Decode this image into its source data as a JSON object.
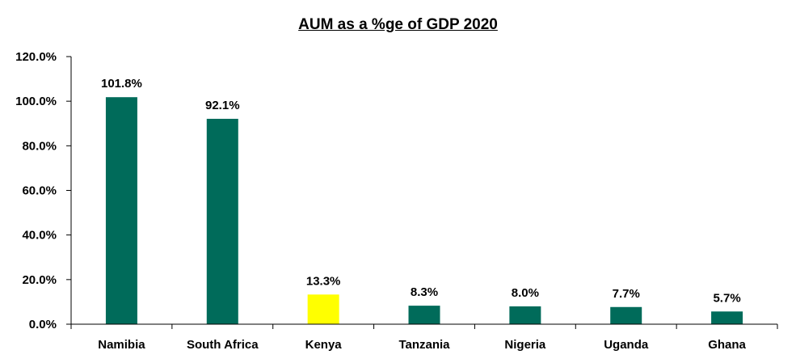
{
  "chart_data": {
    "type": "bar",
    "title": "AUM as a %ge of GDP 2020",
    "xlabel": "",
    "ylabel": "",
    "categories": [
      "Namibia",
      "South Africa",
      "Kenya",
      "Tanzania",
      "Nigeria",
      "Uganda",
      "Ghana"
    ],
    "values": [
      101.8,
      92.1,
      13.3,
      8.3,
      8.0,
      7.7,
      5.7
    ],
    "value_labels": [
      "101.8%",
      "92.1%",
      "13.3%",
      "8.3%",
      "8.0%",
      "7.7%",
      "5.7%"
    ],
    "ylim": [
      0,
      120
    ],
    "yticks": [
      0,
      20,
      40,
      60,
      80,
      100,
      120
    ],
    "ytick_labels": [
      "0.0%",
      "20.0%",
      "40.0%",
      "60.0%",
      "80.0%",
      "100.0%",
      "120.0%"
    ],
    "grid": false,
    "legend": "none",
    "colors": {
      "default_bar": "#006b5a",
      "highlight_bar": "#ffff00",
      "highlight_category": "Kenya",
      "axis": "#000000"
    }
  }
}
